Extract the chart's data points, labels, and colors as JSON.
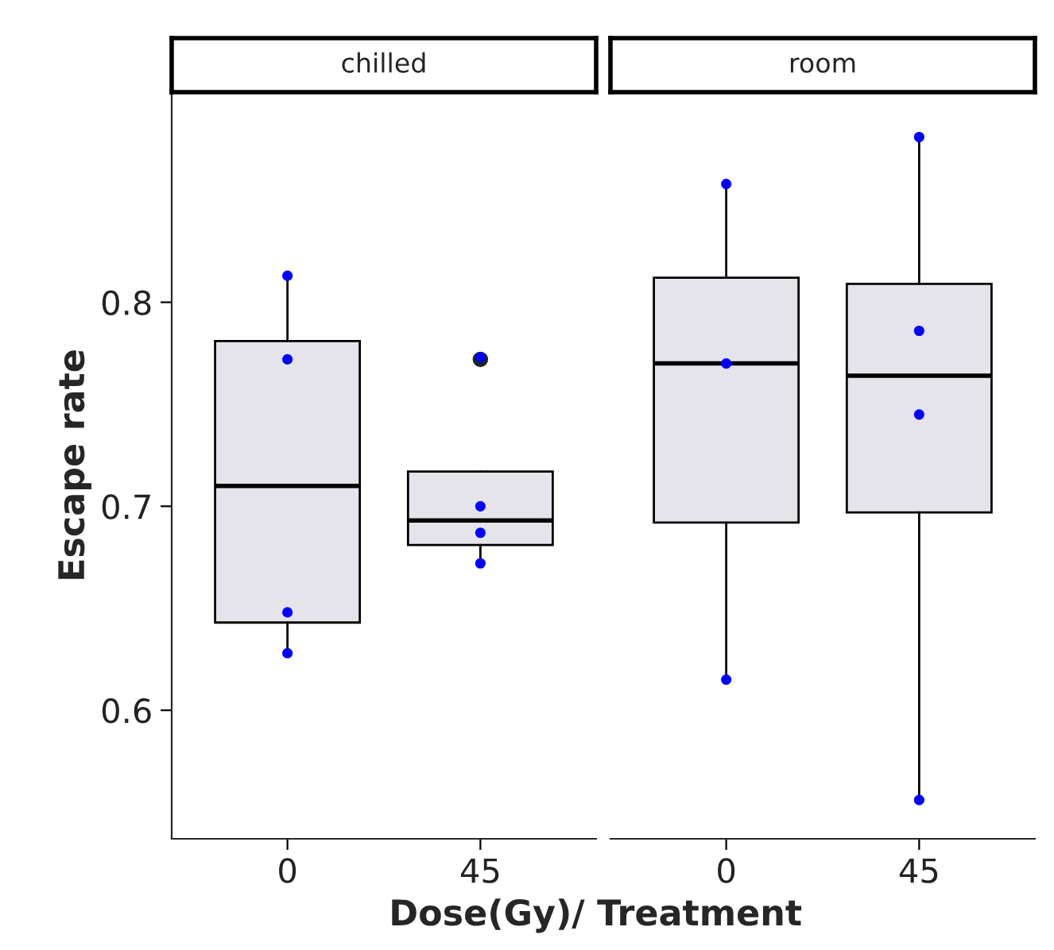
{
  "chart_data": [
    {
      "type": "box",
      "title": "chilled",
      "xlabel": "Dose(Gy)/ Treatment",
      "ylabel": "Escape rate",
      "categories": [
        "0",
        "45"
      ],
      "ylim": [
        0.537,
        0.903
      ],
      "yticks": [
        0.6,
        0.7,
        0.8
      ],
      "grid": false,
      "boxes": [
        {
          "low": 0.628,
          "q1": 0.643,
          "median": 0.71,
          "q3": 0.781,
          "high": 0.813
        },
        {
          "low": 0.672,
          "q1": 0.681,
          "median": 0.693,
          "q3": 0.717,
          "high": 0.717,
          "outliers": [
            0.772
          ]
        }
      ],
      "series": [
        {
          "type": "scatter",
          "color": "#0000ff",
          "x": [
            "0",
            "0",
            "0",
            "0",
            "45",
            "45",
            "45",
            "45"
          ],
          "values": [
            0.813,
            0.772,
            0.648,
            0.628,
            0.773,
            0.7,
            0.687,
            0.672
          ]
        }
      ]
    },
    {
      "type": "box",
      "title": "room",
      "categories": [
        "0",
        "45"
      ],
      "ylim": [
        0.537,
        0.903
      ],
      "tick_labels": "x",
      "grid": false,
      "boxes": [
        {
          "low": 0.615,
          "q1": 0.692,
          "median": 0.77,
          "q3": 0.812,
          "high": 0.858
        },
        {
          "low": 0.556,
          "q1": 0.697,
          "median": 0.764,
          "q3": 0.809,
          "high": 0.881
        }
      ],
      "series": [
        {
          "type": "scatter",
          "color": "#0000ff",
          "x": [
            "0",
            "0",
            "0",
            "45",
            "45",
            "45",
            "45"
          ],
          "values": [
            0.858,
            0.77,
            0.615,
            0.881,
            0.786,
            0.745,
            0.556
          ]
        }
      ]
    }
  ]
}
